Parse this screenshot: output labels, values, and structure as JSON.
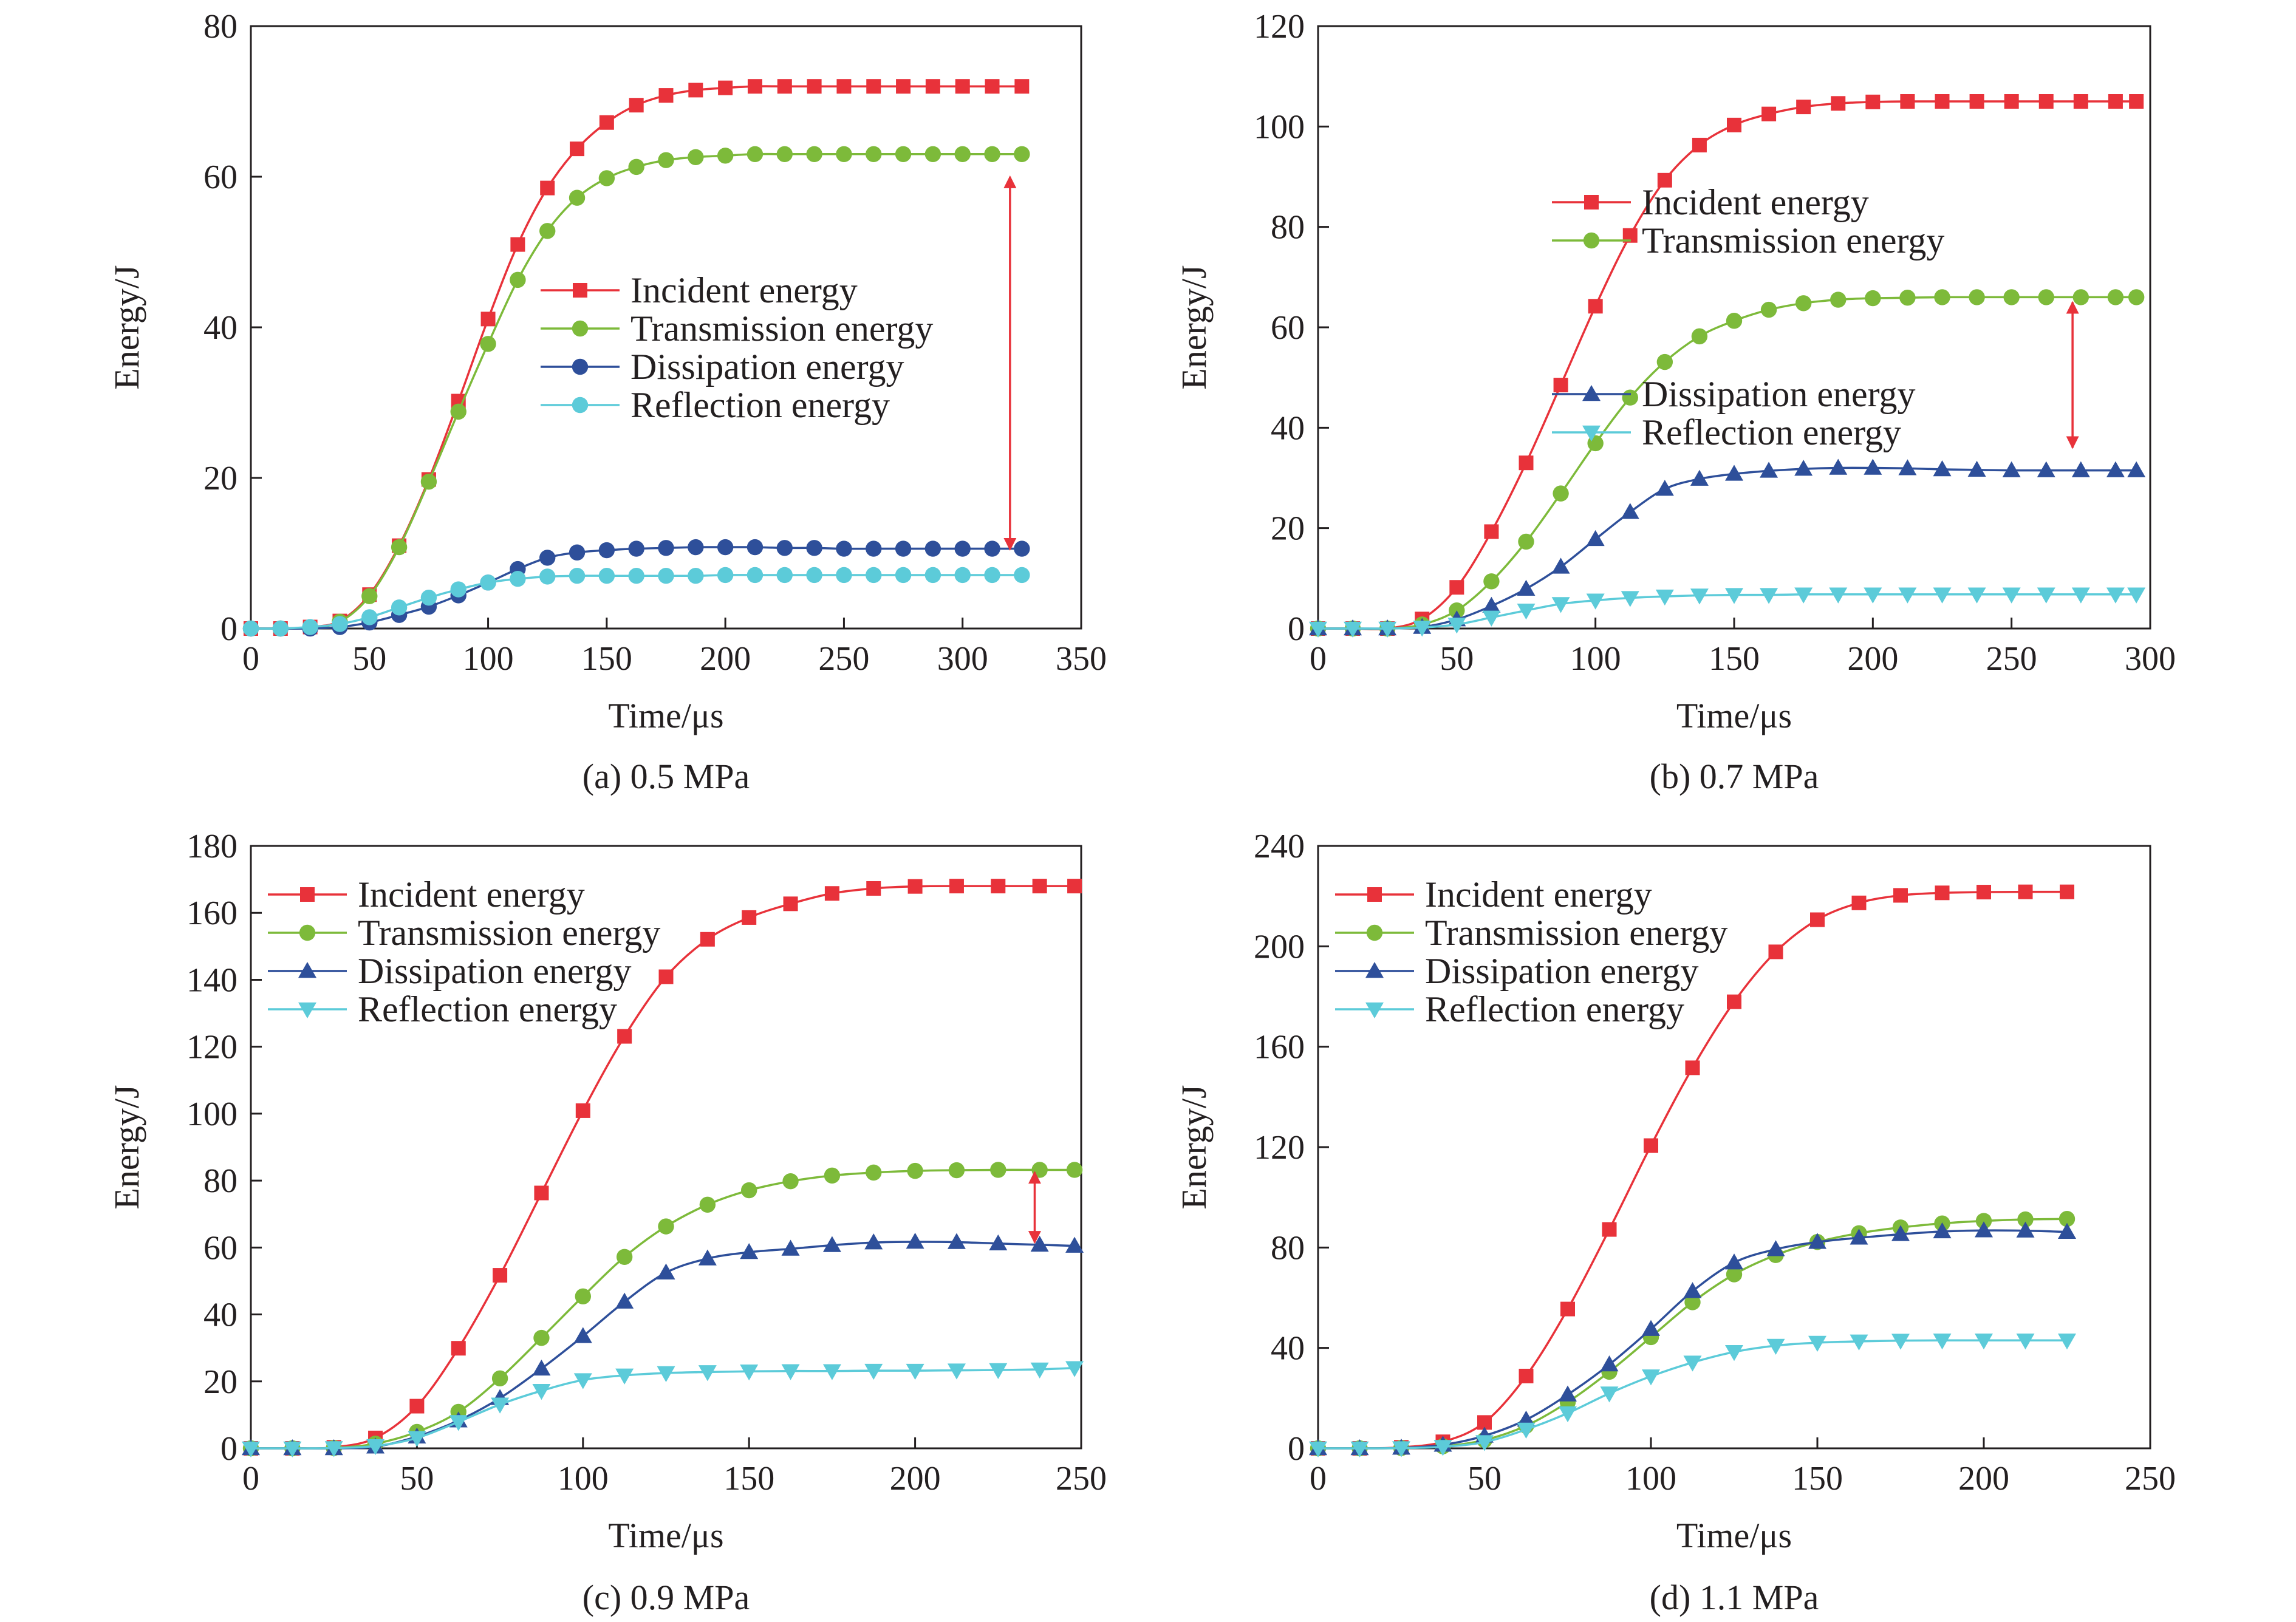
{
  "colors": {
    "incident": "#e8323a",
    "transmission": "#7dba3a",
    "dissipation": "#2e4f9a",
    "reflection": "#5ccbd9",
    "arrow": "#e8323a",
    "axis": "#231f20"
  },
  "chart_data": [
    {
      "type": "line",
      "caption": "(a) 0.5 MPa",
      "xlabel": "Time/μs",
      "ylabel": "Energy/J",
      "xlim": [
        0,
        350
      ],
      "ylim": [
        0,
        80
      ],
      "xticks": [
        0,
        50,
        100,
        150,
        200,
        250,
        300,
        350
      ],
      "yticks": [
        0,
        20,
        40,
        60,
        80
      ],
      "legend": "center",
      "arrow": {
        "x": 320,
        "y_from": 60,
        "y_to": 10.5
      },
      "x": [
        0,
        12.5,
        25,
        37.5,
        50,
        62.5,
        75,
        87.5,
        100,
        112.5,
        125,
        137.5,
        150,
        162.5,
        175,
        187.5,
        200,
        212.5,
        225,
        237.5,
        250,
        262.5,
        275,
        287.5,
        300,
        312.5,
        325
      ],
      "series": [
        {
          "name": "Incident energy",
          "key": "incident",
          "marker": "square",
          "values": [
            0,
            0,
            0.2,
            1.0,
            4.5,
            11,
            19.8,
            30.2,
            41.1,
            51,
            58.5,
            63.7,
            67.2,
            69.5,
            70.8,
            71.5,
            71.8,
            72,
            72,
            72,
            72,
            72,
            72,
            72,
            72,
            72,
            72
          ]
        },
        {
          "name": "Transmission energy",
          "key": "transmission",
          "marker": "circle",
          "values": [
            0,
            0,
            0.1,
            0.9,
            4.3,
            10.8,
            19.5,
            28.8,
            37.8,
            46.3,
            52.8,
            57.2,
            59.8,
            61.3,
            62.2,
            62.6,
            62.8,
            63,
            63,
            63,
            63,
            63,
            63,
            63,
            63,
            63,
            63
          ]
        },
        {
          "name": "Dissipation energy",
          "key": "dissipation",
          "marker": "circle",
          "values": [
            0,
            0,
            0,
            0.2,
            0.8,
            1.8,
            2.9,
            4.4,
            6.1,
            7.9,
            9.4,
            10.1,
            10.4,
            10.6,
            10.7,
            10.8,
            10.8,
            10.8,
            10.7,
            10.7,
            10.6,
            10.6,
            10.6,
            10.6,
            10.6,
            10.6,
            10.6
          ]
        },
        {
          "name": "Reflection energy",
          "key": "reflection",
          "marker": "circle",
          "values": [
            0,
            0,
            0.2,
            0.6,
            1.5,
            2.8,
            4.1,
            5.2,
            6.1,
            6.6,
            6.9,
            7.0,
            7.0,
            7.0,
            7.0,
            7.0,
            7.1,
            7.1,
            7.1,
            7.1,
            7.1,
            7.1,
            7.1,
            7.1,
            7.1,
            7.1,
            7.1
          ]
        }
      ]
    },
    {
      "type": "line",
      "caption": "(b) 0.7 MPa",
      "xlabel": "Time/μs",
      "ylabel": "Energy/J",
      "xlim": [
        0,
        300
      ],
      "ylim": [
        0,
        120
      ],
      "xticks": [
        0,
        50,
        100,
        150,
        200,
        250,
        300
      ],
      "yticks": [
        0,
        20,
        40,
        60,
        80,
        100,
        120
      ],
      "legend": "right",
      "arrow": {
        "x": 272,
        "y_from": 65,
        "y_to": 36
      },
      "x": [
        0,
        12.5,
        25,
        37.5,
        50,
        62.5,
        75,
        87.5,
        100,
        112.5,
        125,
        137.5,
        150,
        162.5,
        175,
        187.5,
        200,
        212.5,
        225,
        237.5,
        250,
        262.5,
        275,
        287.5,
        295
      ],
      "series": [
        {
          "name": "Incident energy",
          "key": "incident",
          "marker": "square",
          "values": [
            0,
            0,
            0,
            1.9,
            8.2,
            19.3,
            33,
            48.5,
            64.2,
            78.3,
            89.3,
            96.3,
            100.3,
            102.5,
            103.9,
            104.6,
            104.9,
            105,
            105,
            105,
            105,
            105,
            105,
            105,
            105
          ]
        },
        {
          "name": "Transmission energy",
          "key": "transmission",
          "marker": "circle",
          "values": [
            0,
            0,
            0,
            0.8,
            3.6,
            9.4,
            17.3,
            26.9,
            36.9,
            46.0,
            53.1,
            58.2,
            61.3,
            63.5,
            64.8,
            65.5,
            65.8,
            65.9,
            66.0,
            66.0,
            66.0,
            66.0,
            66.0,
            66.0,
            66.0
          ]
        },
        {
          "name": "Dissipation energy",
          "key": "dissipation",
          "marker": "triangle",
          "values": [
            0,
            0,
            0,
            0.3,
            1.8,
            4.5,
            7.9,
            12.3,
            17.8,
            23.2,
            27.8,
            29.8,
            30.8,
            31.4,
            31.8,
            32.0,
            32.0,
            31.9,
            31.7,
            31.6,
            31.5,
            31.5,
            31.5,
            31.5,
            31.5
          ]
        },
        {
          "name": "Reflection energy",
          "key": "reflection",
          "marker": "triangle-down",
          "values": [
            0,
            0,
            0,
            0.2,
            0.8,
            2.2,
            3.6,
            4.9,
            5.6,
            6.1,
            6.4,
            6.6,
            6.7,
            6.7,
            6.8,
            6.8,
            6.8,
            6.8,
            6.8,
            6.8,
            6.8,
            6.8,
            6.8,
            6.8,
            6.8
          ]
        }
      ]
    },
    {
      "type": "line",
      "caption": "(c) 0.9 MPa",
      "xlabel": "Time/μs",
      "ylabel": "Energy/J",
      "xlim": [
        0,
        250
      ],
      "ylim": [
        0,
        180
      ],
      "xticks": [
        0,
        50,
        100,
        150,
        200,
        250
      ],
      "yticks": [
        0,
        20,
        40,
        60,
        80,
        100,
        120,
        140,
        160,
        180
      ],
      "legend": "top-left",
      "arrow": {
        "x": 236,
        "y_from": 82.5,
        "y_to": 61.5
      },
      "x": [
        0,
        12.5,
        25,
        37.5,
        50,
        62.5,
        75,
        87.5,
        100,
        112.5,
        125,
        137.5,
        150,
        162.5,
        175,
        187.5,
        200,
        212.5,
        225,
        237.5,
        248
      ],
      "series": [
        {
          "name": "Incident energy",
          "key": "incident",
          "marker": "square",
          "values": [
            0,
            0,
            0.3,
            3.1,
            12.6,
            29.9,
            51.7,
            76.3,
            100.9,
            123.1,
            140.9,
            152.1,
            158.6,
            162.7,
            165.8,
            167.3,
            167.9,
            168,
            168,
            168,
            168
          ]
        },
        {
          "name": "Transmission energy",
          "key": "transmission",
          "marker": "circle",
          "values": [
            0,
            0,
            0.1,
            1.4,
            4.9,
            10.9,
            20.9,
            33.0,
            45.4,
            57.2,
            66.3,
            72.8,
            77.1,
            79.8,
            81.5,
            82.4,
            82.9,
            83.1,
            83.2,
            83.2,
            83.2
          ]
        },
        {
          "name": "Dissipation energy",
          "key": "dissipation",
          "marker": "triangle",
          "values": [
            0,
            0,
            0,
            0.5,
            3.5,
            8.3,
            15.0,
            23.8,
            33.5,
            43.8,
            52.5,
            56.7,
            58.6,
            59.6,
            60.7,
            61.5,
            61.7,
            61.6,
            61.2,
            60.8,
            60.5
          ]
        },
        {
          "name": "Reflection energy",
          "key": "reflection",
          "marker": "triangle-down",
          "values": [
            0,
            0,
            0.1,
            0.7,
            3.1,
            7.9,
            13.1,
            17.2,
            20.4,
            21.8,
            22.5,
            22.8,
            23.0,
            23.1,
            23.1,
            23.2,
            23.2,
            23.3,
            23.4,
            23.6,
            24.0
          ]
        }
      ]
    },
    {
      "type": "line",
      "caption": "(d) 1.1 MPa",
      "xlabel": "Time/μs",
      "ylabel": "Energy/J",
      "xlim": [
        0,
        250
      ],
      "ylim": [
        0,
        240
      ],
      "xticks": [
        0,
        50,
        100,
        150,
        200,
        250
      ],
      "yticks": [
        0,
        40,
        80,
        120,
        160,
        200,
        240
      ],
      "legend": "top-left",
      "arrow": null,
      "x": [
        0,
        12.5,
        25,
        37.5,
        50,
        62.5,
        75,
        87.5,
        100,
        112.5,
        125,
        137.5,
        150,
        162.5,
        175,
        187.5,
        200,
        212.5,
        225
      ],
      "series": [
        {
          "name": "Incident energy",
          "key": "incident",
          "marker": "square",
          "values": [
            0,
            0,
            0.4,
            2.6,
            10.3,
            28.8,
            55.5,
            87.2,
            120.6,
            151.6,
            177.9,
            197.8,
            210.6,
            217.3,
            220.3,
            221.3,
            221.6,
            221.7,
            221.7
          ]
        },
        {
          "name": "Transmission energy",
          "key": "transmission",
          "marker": "circle",
          "values": [
            0,
            0,
            0.1,
            0.8,
            3.3,
            9.0,
            18.4,
            30.5,
            44.3,
            58.2,
            69.3,
            77.0,
            82.2,
            85.7,
            88.0,
            89.6,
            90.6,
            91.2,
            91.4
          ]
        },
        {
          "name": "Dissipation energy",
          "key": "dissipation",
          "marker": "triangle",
          "values": [
            0,
            0,
            0.2,
            1.4,
            5.0,
            11.4,
            21.4,
            33.4,
            47.5,
            62.6,
            74.0,
            79.3,
            82.2,
            83.9,
            85.3,
            86.4,
            86.8,
            86.7,
            86.2
          ]
        },
        {
          "name": "Reflection energy",
          "key": "reflection",
          "marker": "triangle-down",
          "values": [
            0,
            0,
            0.1,
            0.6,
            2.5,
            7.5,
            14.0,
            21.9,
            28.7,
            34.2,
            38.4,
            40.9,
            42.1,
            42.6,
            42.9,
            43.0,
            43.0,
            43.0,
            43.0
          ]
        }
      ]
    }
  ]
}
